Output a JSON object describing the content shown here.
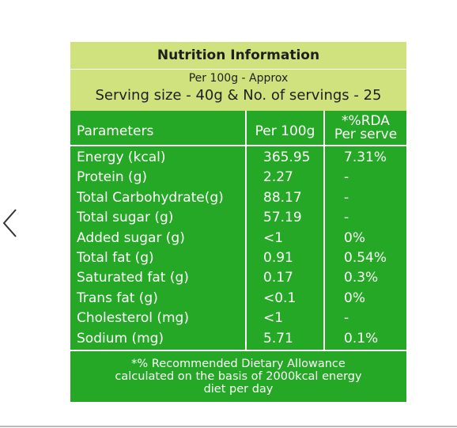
{
  "title": "Nutrition Information",
  "subtitle": "Per 100g - Approx",
  "serving": "Serving size - 40g & No. of servings - 25",
  "header": {
    "parameters": "Parameters",
    "per100g": "Per 100g",
    "rda_top": "*%RDA",
    "rda_bottom": "Per serve"
  },
  "table": {
    "rows": [
      [
        "Energy (kcal)",
        "365.95",
        "7.31%"
      ],
      [
        "Protein (g)",
        "2.27",
        "-"
      ],
      [
        "Total Carbohydrate(g)",
        "88.17",
        "-"
      ],
      [
        "Total sugar (g)",
        "57.19",
        "-"
      ],
      [
        "Added sugar (g)",
        "<1",
        "0%"
      ],
      [
        "Total fat (g)",
        "0.91",
        "0.54%"
      ],
      [
        "Saturated fat (g)",
        "0.17",
        "0.3%"
      ],
      [
        "Trans fat (g)",
        "<0.1",
        "0%"
      ],
      [
        "Cholesterol (mg)",
        "<1",
        "-"
      ],
      [
        "Sodium (mg)",
        "5.71",
        "0.1%"
      ]
    ]
  },
  "footnote": [
    "*% Recommended Dietary Allowance",
    "calculated on the basis of 2000kcal energy",
    "diet per day"
  ]
}
